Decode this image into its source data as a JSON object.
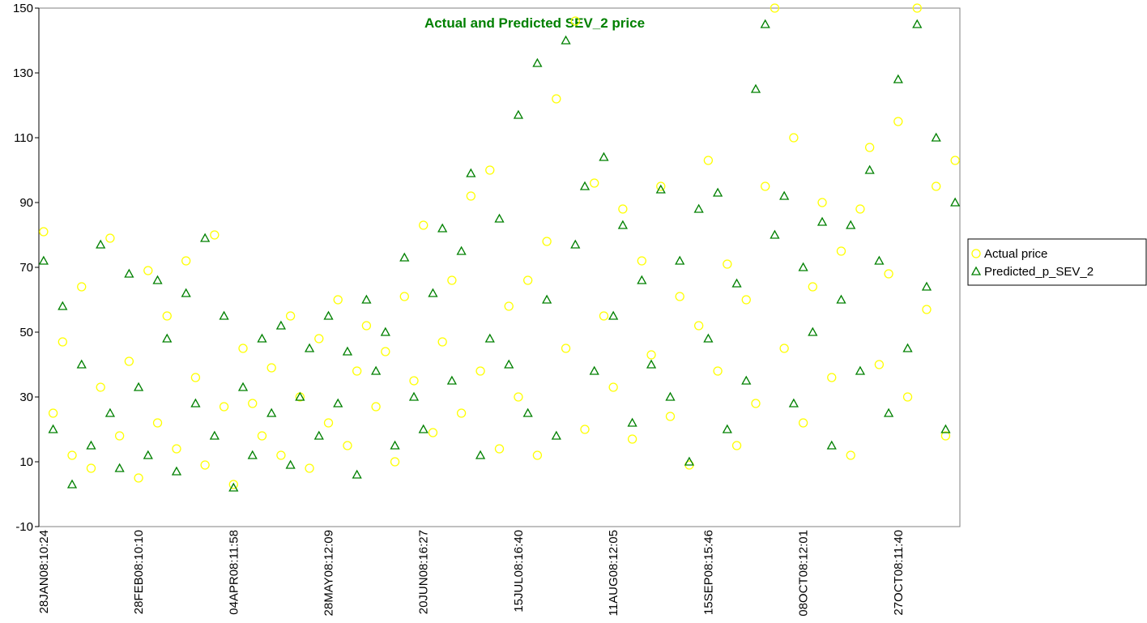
{
  "chart_data": {
    "type": "scatter",
    "title": "Actual and Predicted  SEV_2 price",
    "categories": [
      "28JAN08:10:24",
      null,
      null,
      null,
      null,
      null,
      null,
      null,
      null,
      null,
      "28FEB08:10:10",
      null,
      null,
      null,
      null,
      null,
      null,
      null,
      null,
      null,
      "04APR08:11:58",
      null,
      null,
      null,
      null,
      null,
      null,
      null,
      null,
      null,
      "28MAY08:12:09",
      null,
      null,
      null,
      null,
      null,
      null,
      null,
      null,
      null,
      "20JUN08:16:27",
      null,
      null,
      null,
      null,
      null,
      null,
      null,
      null,
      null,
      "15JUL08:16:40",
      null,
      null,
      null,
      null,
      null,
      null,
      null,
      null,
      null,
      "11AUG08:12:05",
      null,
      null,
      null,
      null,
      null,
      null,
      null,
      null,
      null,
      "15SEP08:15:46",
      null,
      null,
      null,
      null,
      null,
      null,
      null,
      null,
      null,
      "08OCT08:12:01",
      null,
      null,
      null,
      null,
      null,
      null,
      null,
      null,
      null,
      "27OCT08:11:40",
      null,
      null,
      null,
      null,
      null,
      null
    ],
    "series": [
      {
        "name": "Actual price",
        "color": "#ffff00",
        "marker": "circle",
        "values": [
          81,
          25,
          47,
          12,
          64,
          8,
          33,
          79,
          18,
          41,
          5,
          69,
          22,
          55,
          14,
          72,
          36,
          9,
          80,
          27,
          3,
          45,
          28,
          18,
          39,
          12,
          55,
          30,
          8,
          48,
          22,
          60,
          15,
          38,
          52,
          27,
          44,
          10,
          61,
          35,
          83,
          19,
          47,
          66,
          25,
          92,
          38,
          100,
          14,
          58,
          30,
          66,
          12,
          78,
          122,
          45,
          146,
          20,
          96,
          55,
          33,
          88,
          17,
          72,
          43,
          95,
          24,
          61,
          9,
          52,
          103,
          38,
          71,
          15,
          60,
          28,
          95,
          150,
          45,
          110,
          22,
          64,
          90,
          36,
          75,
          12,
          88,
          107,
          40,
          68,
          115,
          30,
          150,
          57,
          95,
          18,
          103
        ]
      },
      {
        "name": "Predicted_p_SEV_2",
        "color": "#008000",
        "marker": "triangle",
        "values": [
          72,
          20,
          58,
          3,
          40,
          15,
          77,
          25,
          8,
          68,
          33,
          12,
          66,
          48,
          7,
          62,
          28,
          79,
          18,
          55,
          2,
          33,
          12,
          48,
          25,
          52,
          9,
          30,
          45,
          18,
          55,
          28,
          44,
          6,
          60,
          38,
          50,
          15,
          73,
          30,
          20,
          62,
          82,
          35,
          75,
          99,
          12,
          48,
          85,
          40,
          117,
          25,
          133,
          60,
          18,
          140,
          77,
          95,
          38,
          104,
          55,
          83,
          22,
          66,
          40,
          94,
          30,
          72,
          10,
          88,
          48,
          93,
          20,
          65,
          35,
          125,
          145,
          80,
          92,
          28,
          70,
          50,
          84,
          15,
          60,
          83,
          38,
          100,
          72,
          25,
          128,
          45,
          145,
          64,
          110,
          20,
          90
        ]
      }
    ],
    "ylim": [
      -10,
      150
    ],
    "yticks": [
      -10,
      10,
      30,
      50,
      70,
      90,
      110,
      130,
      150
    ],
    "grid": false,
    "legend": "right",
    "title_color": "#008000"
  }
}
